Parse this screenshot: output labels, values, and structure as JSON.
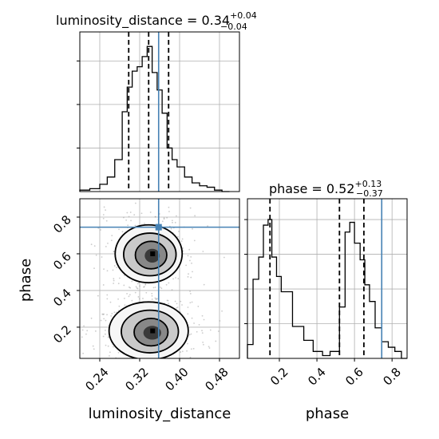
{
  "chart_data": [
    {
      "panel": "luminosity_distance-histogram",
      "type": "histogram",
      "title_main": "luminosity_distance = 0.34",
      "title_plus": "+0.04",
      "title_minus": "−0.04",
      "xlim": [
        0.2,
        0.52
      ],
      "bin_edges": [
        0.2,
        0.22,
        0.24,
        0.255,
        0.27,
        0.285,
        0.295,
        0.305,
        0.315,
        0.325,
        0.335,
        0.345,
        0.355,
        0.365,
        0.375,
        0.385,
        0.395,
        0.41,
        0.425,
        0.44,
        0.455,
        0.47,
        0.485,
        0.5
      ],
      "counts": [
        0.01,
        0.02,
        0.05,
        0.1,
        0.22,
        0.55,
        0.72,
        0.83,
        0.86,
        0.93,
        1.0,
        0.82,
        0.7,
        0.54,
        0.3,
        0.22,
        0.17,
        0.1,
        0.06,
        0.04,
        0.03,
        0.01,
        0.0
      ],
      "quantiles": [
        0.298,
        0.338,
        0.378
      ],
      "truth": 0.358
    },
    {
      "panel": "phase-vs-luminosity_distance",
      "type": "scatter-contour",
      "xlabel": "luminosity_distance",
      "ylabel": "phase",
      "xlim": [
        0.2,
        0.52
      ],
      "ylim": [
        0.03,
        0.9
      ],
      "xticks": [
        "0.24",
        "0.32",
        "0.40",
        "0.48"
      ],
      "xtick_values": [
        0.24,
        0.32,
        0.4,
        0.48
      ],
      "yticks": [
        "0.2",
        "0.4",
        "0.6",
        "0.8"
      ],
      "ytick_values": [
        0.2,
        0.4,
        0.6,
        0.8
      ],
      "modes": [
        {
          "cx": 0.338,
          "cy": 0.6,
          "sx": 0.032,
          "sy": 0.075
        },
        {
          "cx": 0.338,
          "cy": 0.18,
          "sx": 0.036,
          "sy": 0.075
        }
      ],
      "truth": {
        "x": 0.358,
        "y": 0.745
      }
    },
    {
      "panel": "phase-histogram",
      "type": "histogram",
      "title_main": "phase = 0.52",
      "title_plus": "+0.13",
      "title_minus": "−0.37",
      "xlabel": "phase",
      "xlim": [
        0.03,
        0.88
      ],
      "xticks": [
        "0.2",
        "0.4",
        "0.6",
        "0.8"
      ],
      "xtick_values": [
        0.2,
        0.4,
        0.6,
        0.8
      ],
      "bin_edges": [
        0.03,
        0.06,
        0.09,
        0.115,
        0.14,
        0.16,
        0.185,
        0.21,
        0.27,
        0.33,
        0.38,
        0.43,
        0.47,
        0.52,
        0.55,
        0.575,
        0.6,
        0.63,
        0.655,
        0.68,
        0.71,
        0.745,
        0.78,
        0.815,
        0.85,
        0.88
      ],
      "counts": [
        0.1,
        0.57,
        0.73,
        0.96,
        1.0,
        0.73,
        0.59,
        0.48,
        0.23,
        0.13,
        0.05,
        0.02,
        0.05,
        0.37,
        0.91,
        0.98,
        0.83,
        0.71,
        0.53,
        0.41,
        0.22,
        0.12,
        0.08,
        0.05,
        0.0
      ],
      "quantiles": [
        0.15,
        0.52,
        0.65
      ],
      "truth": 0.745
    }
  ]
}
